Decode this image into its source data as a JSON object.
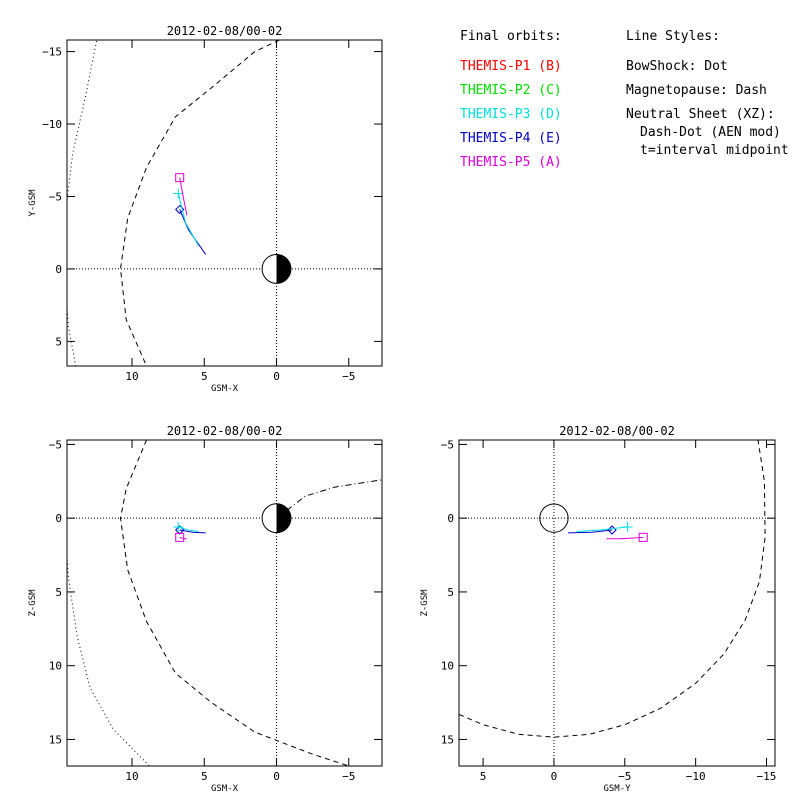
{
  "legend": {
    "orbits_header": "Final orbits:",
    "styles_header": "Line Styles:",
    "probes": [
      {
        "label": "THEMIS-P1 (B)",
        "color": "#ff0000"
      },
      {
        "label": "THEMIS-P2 (C)",
        "color": "#00dd00"
      },
      {
        "label": "THEMIS-P3 (D)",
        "color": "#00dddd"
      },
      {
        "label": "THEMIS-P4 (E)",
        "color": "#0000cc"
      },
      {
        "label": "THEMIS-P5 (A)",
        "color": "#dd00dd"
      }
    ],
    "styles": [
      "BowShock: Dot",
      "Magnetopause: Dash",
      "Neutral Sheet (XZ):",
      "Dash-Dot (AEN mod)",
      "t=interval midpoint"
    ]
  },
  "chart_data": [
    {
      "id": "xy",
      "type": "line",
      "title": "2012-02-08/00-02",
      "xlabel": "GSM-X",
      "ylabel": "Y-GSM",
      "xlim": [
        14.5,
        -7.3
      ],
      "ylim": [
        -15.8,
        6.7
      ],
      "xticks": [
        10,
        5,
        0,
        -5
      ],
      "yticks": [
        -15,
        -10,
        -5,
        0,
        5
      ],
      "earth": "x-sun",
      "bowshock": [
        [
          12.4,
          -16
        ],
        [
          13.2,
          -12
        ],
        [
          14.1,
          -8
        ],
        [
          14.6,
          -4
        ],
        [
          14.7,
          0
        ],
        [
          14.4,
          4
        ],
        [
          13.9,
          6.7
        ]
      ],
      "magnetopause": [
        [
          -0.2,
          -15.8
        ],
        [
          1.5,
          -15
        ],
        [
          4.5,
          -12.5
        ],
        [
          7,
          -10.5
        ],
        [
          9,
          -7
        ],
        [
          10.3,
          -3.5
        ],
        [
          10.8,
          0
        ],
        [
          10.4,
          3.5
        ],
        [
          9,
          6.7
        ]
      ],
      "orbits": [
        {
          "probe": "THEMIS-P4 (E)",
          "color": "#0000cc",
          "points": [
            [
              6.7,
              -4.1
            ],
            [
              6.1,
              -2.7
            ],
            [
              4.9,
              -1.0
            ]
          ],
          "marker": "diamond",
          "marker_at": [
            6.7,
            -4.1
          ]
        },
        {
          "probe": "THEMIS-P3 (D)",
          "color": "#00dddd",
          "points": [
            [
              6.8,
              -5.2
            ],
            [
              6.3,
              -3.2
            ],
            [
              5.4,
              -1.6
            ]
          ],
          "marker": "plus",
          "marker_at": [
            6.8,
            -5.2
          ]
        },
        {
          "probe": "THEMIS-P5 (A)",
          "color": "#dd00dd",
          "points": [
            [
              6.7,
              -6.3
            ],
            [
              6.4,
              -4.7
            ],
            [
              6.2,
              -3.7
            ]
          ],
          "marker": "square",
          "marker_at": [
            6.7,
            -6.3
          ]
        }
      ]
    },
    {
      "id": "xz",
      "type": "line",
      "title": "2012-02-08/00-02",
      "xlabel": "GSM-X",
      "ylabel": "Z-GSM",
      "xlim": [
        14.5,
        -7.3
      ],
      "ylim": [
        -5.3,
        16.8
      ],
      "xticks": [
        10,
        5,
        0,
        -5
      ],
      "yticks": [
        -5,
        0,
        5,
        10,
        15
      ],
      "earth": "x-sun",
      "bowshock": [
        [
          14.6,
          -5.3
        ],
        [
          14.7,
          0
        ],
        [
          14.4,
          4
        ],
        [
          13.8,
          8
        ],
        [
          12.9,
          11.5
        ],
        [
          11.3,
          14.3
        ],
        [
          8.8,
          16.8
        ]
      ],
      "magnetopause": [
        [
          9,
          -5.3
        ],
        [
          10.4,
          -2
        ],
        [
          10.8,
          0
        ],
        [
          10.3,
          3.5
        ],
        [
          9,
          7
        ],
        [
          7,
          10.5
        ],
        [
          4.5,
          12.5
        ],
        [
          1.5,
          14.5
        ],
        [
          -2.5,
          16
        ],
        [
          -5,
          16.8
        ]
      ],
      "neutral_sheet": [
        [
          0,
          0
        ],
        [
          -2,
          -1.5
        ],
        [
          -4,
          -2.1
        ],
        [
          -7.3,
          -2.6
        ]
      ],
      "orbits": [
        {
          "probe": "THEMIS-P4 (E)",
          "color": "#0000cc",
          "points": [
            [
              6.7,
              0.8
            ],
            [
              5.8,
              0.95
            ],
            [
              4.9,
              1.0
            ]
          ],
          "marker": "diamond",
          "marker_at": [
            6.7,
            0.8
          ]
        },
        {
          "probe": "THEMIS-P3 (D)",
          "color": "#00dddd",
          "points": [
            [
              6.8,
              0.6
            ],
            [
              6.1,
              0.8
            ],
            [
              5.4,
              0.9
            ]
          ],
          "marker": "plus",
          "marker_at": [
            6.8,
            0.6
          ]
        },
        {
          "probe": "THEMIS-P5 (A)",
          "color": "#dd00dd",
          "points": [
            [
              6.7,
              1.3
            ],
            [
              6.4,
              1.4
            ],
            [
              6.2,
              1.4
            ]
          ],
          "marker": "square",
          "marker_at": [
            6.7,
            1.3
          ]
        }
      ]
    },
    {
      "id": "yz",
      "type": "line",
      "title": "2012-02-08/00-02",
      "xlabel": "GSM-Y",
      "ylabel": "Z-GSM",
      "xlim": [
        6.7,
        -15.6
      ],
      "ylim": [
        -5.3,
        16.8
      ],
      "xticks": [
        5,
        0,
        -5,
        -10,
        -15
      ],
      "yticks": [
        -5,
        0,
        5,
        10,
        15
      ],
      "earth": "plain",
      "magnetopause": [
        [
          6.7,
          13.3
        ],
        [
          5,
          14
        ],
        [
          2.5,
          14.65
        ],
        [
          0,
          14.85
        ],
        [
          -2.5,
          14.65
        ],
        [
          -5,
          14
        ],
        [
          -7.5,
          12.9
        ],
        [
          -10,
          11.2
        ],
        [
          -12,
          9.2
        ],
        [
          -13.5,
          6.9
        ],
        [
          -14.5,
          4.3
        ],
        [
          -14.9,
          1.3
        ],
        [
          -14.85,
          -2.5
        ],
        [
          -14.4,
          -5.3
        ]
      ],
      "orbits": [
        {
          "probe": "THEMIS-P4 (E)",
          "color": "#0000cc",
          "points": [
            [
              -4.1,
              0.8
            ],
            [
              -2.7,
              0.95
            ],
            [
              -1.0,
              1.0
            ]
          ],
          "marker": "diamond",
          "marker_at": [
            -4.1,
            0.8
          ]
        },
        {
          "probe": "THEMIS-P3 (D)",
          "color": "#00dddd",
          "points": [
            [
              -5.2,
              0.6
            ],
            [
              -3.2,
              0.8
            ],
            [
              -1.6,
              0.9
            ]
          ],
          "marker": "plus",
          "marker_at": [
            -5.2,
            0.6
          ]
        },
        {
          "probe": "THEMIS-P5 (A)",
          "color": "#dd00dd",
          "points": [
            [
              -6.3,
              1.3
            ],
            [
              -4.7,
              1.4
            ],
            [
              -3.7,
              1.4
            ]
          ],
          "marker": "square",
          "marker_at": [
            -6.3,
            1.3
          ]
        }
      ]
    }
  ]
}
